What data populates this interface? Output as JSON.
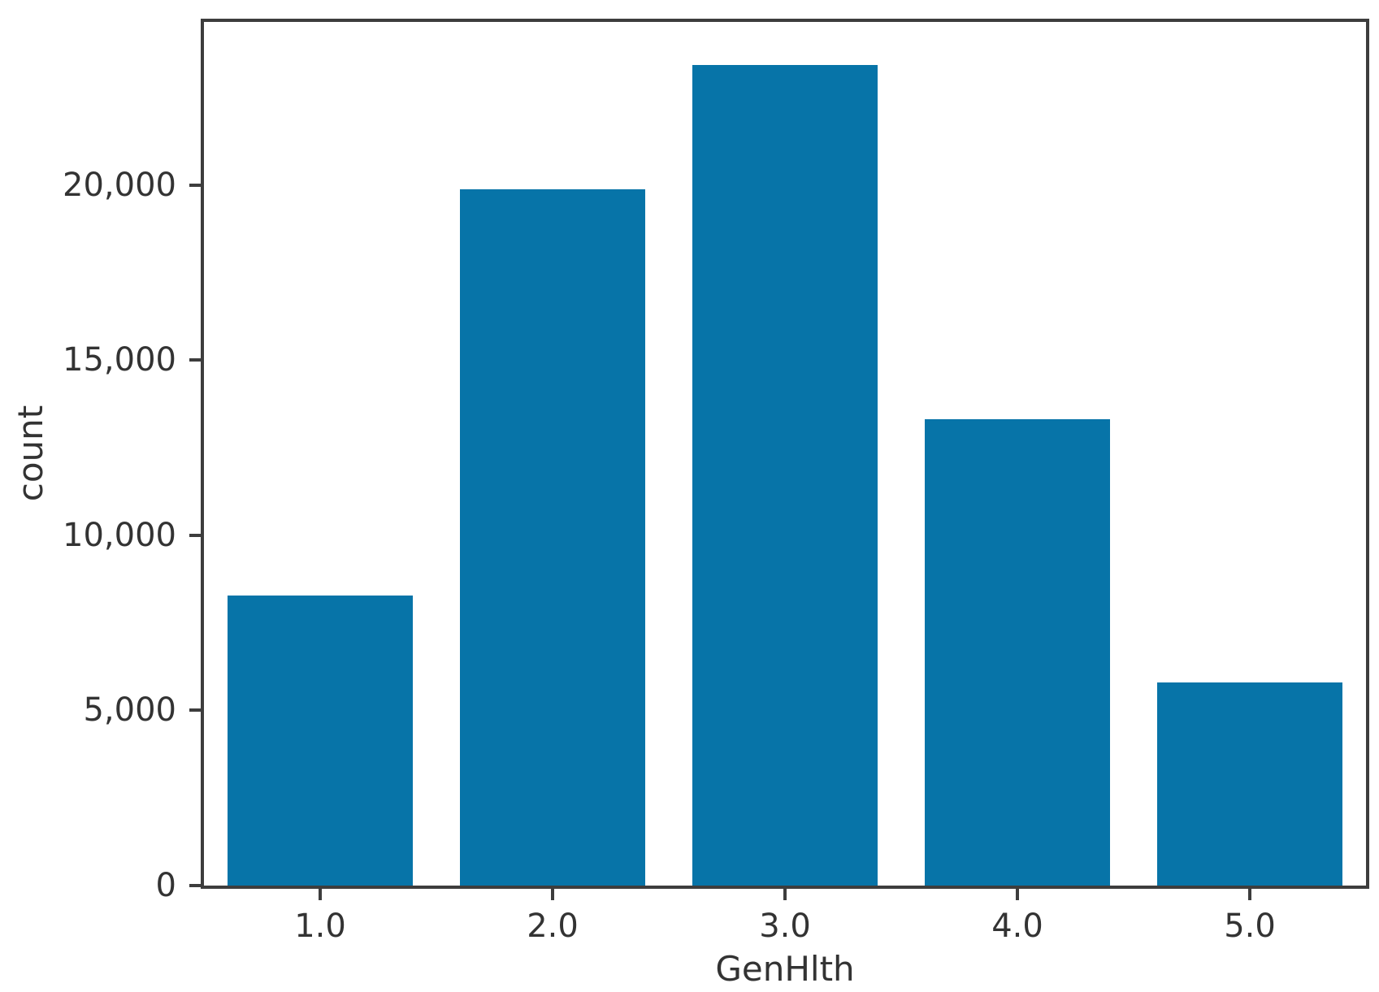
{
  "chart_data": {
    "type": "bar",
    "categories": [
      "1.0",
      "2.0",
      "3.0",
      "4.0",
      "5.0"
    ],
    "values": [
      8282,
      19872,
      23427,
      13303,
      5808
    ],
    "xlabel": "GenHlth",
    "ylabel": "count",
    "ylim": [
      0,
      24650
    ],
    "yticks": [
      {
        "value": 0,
        "label": "0"
      },
      {
        "value": 5000,
        "label": "5,000"
      },
      {
        "value": 10000,
        "label": "10,000"
      },
      {
        "value": 15000,
        "label": "15,000"
      },
      {
        "value": 20000,
        "label": "20,000"
      }
    ],
    "grid": false,
    "legend_position": "none",
    "bar_color": "#0774a8",
    "axis_color": "#3d3d3d",
    "text_color": "#333333",
    "background_color": "#ffffff"
  }
}
